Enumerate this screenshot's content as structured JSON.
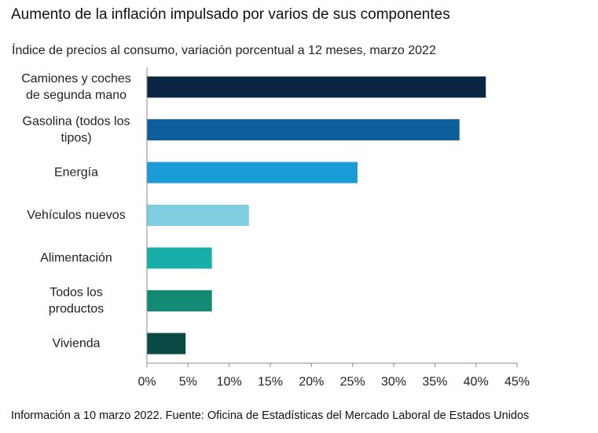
{
  "title": "Aumento de la inflación impulsado por varios de sus componentes",
  "source": "Información a 10 marzo 2022. Fuente: Oficina de Estadísticas del Mercado Laboral de Estados Unidos",
  "chart_data": {
    "type": "bar",
    "orientation": "horizontal",
    "subtitle": "Índice de precios al consumo, variación porcentual a 12 meses, marzo 2022",
    "categories": [
      [
        "Camiones y coches",
        "de segunda mano"
      ],
      [
        "Gasolina (todos los",
        "tipos)"
      ],
      [
        "Energía"
      ],
      [
        "Vehículos nuevos"
      ],
      [
        "Alimentación"
      ],
      [
        "Todos los",
        "productos"
      ],
      [
        "Vivienda"
      ]
    ],
    "values": [
      41.2,
      38.0,
      25.6,
      12.4,
      7.9,
      7.9,
      4.7
    ],
    "colors": [
      "#0b2545",
      "#0e5e9c",
      "#1a9ad6",
      "#7fcfe0",
      "#1aaea8",
      "#138a73",
      "#0a4a44"
    ],
    "xlim": [
      0,
      45
    ],
    "xticks": [
      "0%",
      "5%",
      "10%",
      "15%",
      "20%",
      "25%",
      "30%",
      "35%",
      "40%",
      "45%"
    ],
    "xlabel": "",
    "ylabel": "",
    "grid": false,
    "legend": "none"
  }
}
